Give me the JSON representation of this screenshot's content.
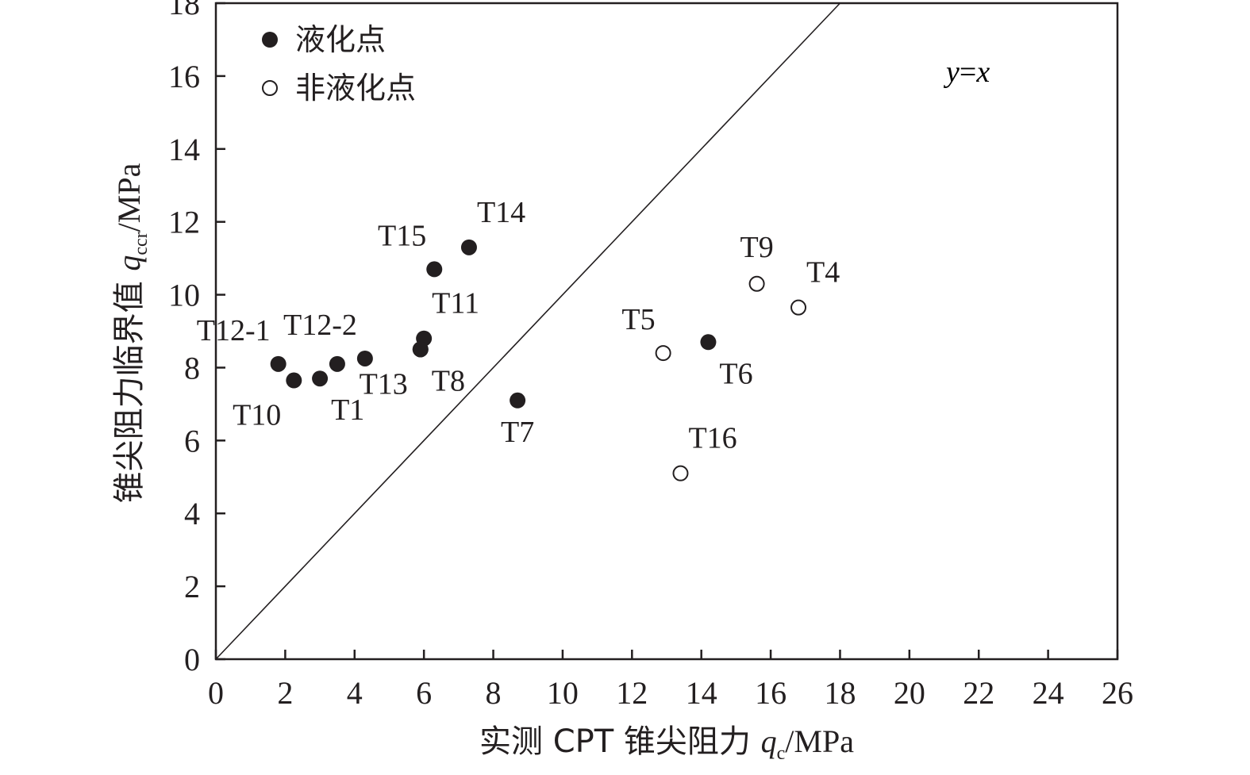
{
  "chart_data": {
    "type": "scatter",
    "xlabel": {
      "prefix": "实测 CPT 锥尖阻力 ",
      "symbol": "q",
      "subscript": "c",
      "unit": "/MPa"
    },
    "ylabel": {
      "prefix": "锥尖阻力临界值 ",
      "symbol": "q",
      "subscript": "ccr",
      "unit": "/MPa"
    },
    "xlim": [
      0,
      26
    ],
    "ylim": [
      0,
      18
    ],
    "xticks": [
      0,
      2,
      4,
      6,
      8,
      10,
      12,
      14,
      16,
      18,
      20,
      22,
      24,
      26
    ],
    "yticks": [
      0,
      2,
      4,
      6,
      8,
      10,
      12,
      14,
      16,
      18
    ],
    "grid": false,
    "legend_position": "top-left",
    "reference_line": {
      "label_y": "y",
      "label_eq": "=",
      "label_x": "x",
      "from": [
        0,
        0
      ],
      "to": [
        18,
        18
      ]
    },
    "series": [
      {
        "name": "液化点",
        "marker": "filled-circle",
        "points": [
          {
            "label": "T1",
            "x": 3.0,
            "y": 7.7
          },
          {
            "label": "",
            "x": 3.5,
            "y": 8.1
          },
          {
            "label": "T6",
            "x": 14.2,
            "y": 8.7
          },
          {
            "label": "T7",
            "x": 8.7,
            "y": 7.1
          },
          {
            "label": "T8",
            "x": 5.9,
            "y": 8.5
          },
          {
            "label": "T10",
            "x": 2.25,
            "y": 7.65
          },
          {
            "label": "T11",
            "x": 6.0,
            "y": 8.8
          },
          {
            "label": "T12-1",
            "x": 1.8,
            "y": 8.1
          },
          {
            "label": "T12-2",
            "x": 4.3,
            "y": 8.25
          },
          {
            "label": "T13",
            "x": 5.9,
            "y": 8.5
          },
          {
            "label": "T14",
            "x": 7.3,
            "y": 11.3
          },
          {
            "label": "T15",
            "x": 6.3,
            "y": 10.7
          }
        ]
      },
      {
        "name": "非液化点",
        "marker": "open-circle",
        "points": [
          {
            "label": "T4",
            "x": 16.8,
            "y": 9.65
          },
          {
            "label": "T5",
            "x": 12.9,
            "y": 8.4
          },
          {
            "label": "T9",
            "x": 15.6,
            "y": 10.3
          },
          {
            "label": "T16",
            "x": 13.4,
            "y": 5.1
          }
        ]
      }
    ],
    "label_placement": {
      "T1": "below-right",
      "T6": "below-right",
      "T7": "below",
      "T8": "below-right",
      "T10": "below-left",
      "T11": "above-right",
      "T12-1": "above-left",
      "T12-2": "above-left",
      "T13": "below-left",
      "T14": "above-right",
      "T15": "above-left",
      "T4": "above-right",
      "T5": "above-left",
      "T9": "above",
      "T16": "above-right"
    }
  }
}
